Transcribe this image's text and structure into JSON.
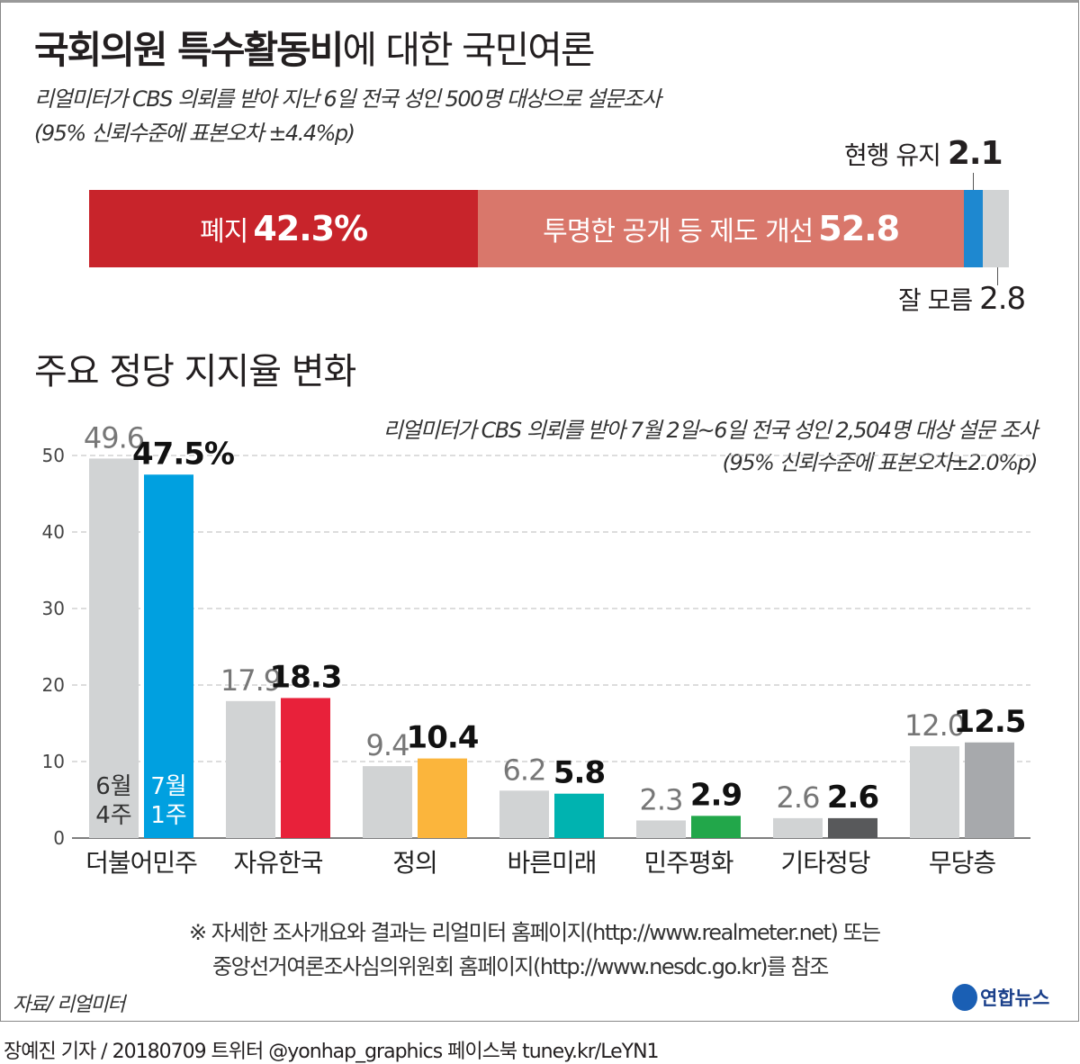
{
  "title": {
    "bold": "국회의원 특수활동비",
    "regular": "에 대한 국민여론"
  },
  "survey1": {
    "line1": "리얼미터가 CBS 의뢰를 받아 지난 6일 전국 성인 500명 대상으로 설문조사",
    "line2": "(95% 신뢰수준에 표본오차 ±4.4%p)"
  },
  "opinion": {
    "segments": [
      {
        "label": "폐지",
        "value": 42.3,
        "display": "42.3%",
        "color": "#c8242b"
      },
      {
        "label": "투명한 공개 등 제도 개선",
        "value": 52.8,
        "display": "52.8",
        "color": "#d9776b"
      },
      {
        "label": "현행 유지",
        "value": 2.1,
        "display": "2.1",
        "color": "#1e88d0"
      },
      {
        "label": "잘 모름",
        "value": 2.8,
        "display": "2.8",
        "color": "#d1d3d4"
      }
    ]
  },
  "section2_title": "주요 정당 지지율 변화",
  "chart_data": {
    "type": "bar",
    "title": "주요 정당 지지율 변화",
    "subtitle1": "리얼미터가 CBS 의뢰를 받아 7월 2일~6일 전국 성인 2,504명 대상 설문 조사",
    "subtitle2": "(95% 신뢰수준에 표본오차±2.0%p)",
    "categories": [
      "더불어민주",
      "자유한국",
      "정의",
      "바른미래",
      "민주평화",
      "기타정당",
      "무당층"
    ],
    "series": [
      {
        "name": "6월 4주",
        "values": [
          49.6,
          17.9,
          9.4,
          6.2,
          2.3,
          2.6,
          12.0
        ],
        "labels": [
          "49.6",
          "17.9",
          "9.4",
          "6.2",
          "2.3",
          "2.6",
          "12.0"
        ],
        "color": "#d1d3d4"
      },
      {
        "name": "7월 1주",
        "values": [
          47.5,
          18.3,
          10.4,
          5.8,
          2.9,
          2.6,
          12.5
        ],
        "labels": [
          "47.5%",
          "18.3",
          "10.4",
          "5.8",
          "2.9",
          "2.6",
          "12.5"
        ],
        "colors": [
          "#00a0e0",
          "#e8213a",
          "#fbb53c",
          "#00b3b0",
          "#22a74a",
          "#58595b",
          "#a7a9ac"
        ]
      }
    ],
    "legend_labels": [
      [
        "6월",
        "4주"
      ],
      [
        "7월",
        "1주"
      ]
    ],
    "yticks": [
      "0",
      "10",
      "20",
      "30",
      "40",
      "50"
    ],
    "ylim": [
      0,
      50
    ],
    "grid": true
  },
  "footnote": {
    "line1": "※ 자세한 조사개요와 결과는 리얼미터 홈페이지(http://www.realmeter.net) 또는",
    "line2": "중앙선거여론조사심의위원회 홈페이지(http://www.nesdc.go.kr)를 참조"
  },
  "source": "자료/ 리얼미터",
  "logo": "연합뉴스",
  "credit": "장예진 기자 / 20180709 트위터 @yonhap_graphics  페이스북 tuney.kr/LeYN1"
}
